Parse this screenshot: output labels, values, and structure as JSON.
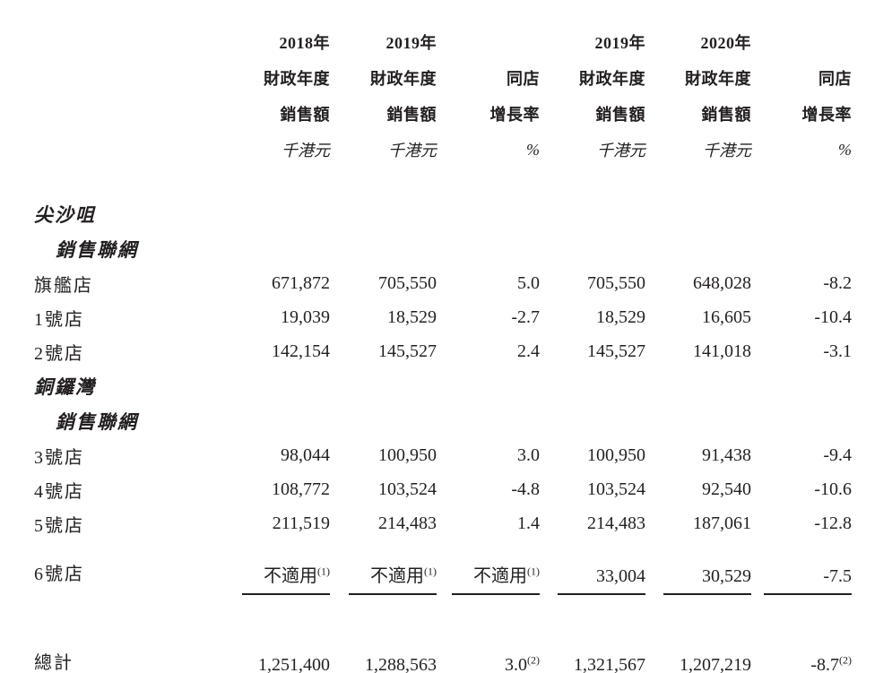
{
  "page": {
    "background": "#ffffff",
    "text_color": "#231f20",
    "rule_color": "#231f20"
  },
  "table": {
    "columns": [
      {
        "id": "fy2018-sales",
        "lines": [
          "2018年",
          "財政年度",
          "銷售額"
        ],
        "unit": "千港元"
      },
      {
        "id": "fy2019-sales-a",
        "lines": [
          "2019年",
          "財政年度",
          "銷售額"
        ],
        "unit": "千港元"
      },
      {
        "id": "same-store-growth-a",
        "lines": [
          "",
          "同店",
          "增長率"
        ],
        "unit": "%"
      },
      {
        "id": "fy2019-sales-b",
        "lines": [
          "2019年",
          "財政年度",
          "銷售額"
        ],
        "unit": "千港元"
      },
      {
        "id": "fy2020-sales",
        "lines": [
          "2020年",
          "財政年度",
          "銷售額"
        ],
        "unit": "千港元"
      },
      {
        "id": "same-store-growth-b",
        "lines": [
          "",
          "同店",
          "增長率"
        ],
        "unit": "%"
      }
    ],
    "rows": [
      {
        "id": "tsim-sha-tsui-section",
        "type": "section",
        "label": "尖沙咀"
      },
      {
        "id": "sales-network-tst",
        "type": "subsection",
        "label": "銷售聯網"
      },
      {
        "id": "flagship-store",
        "type": "data",
        "label": "旗艦店",
        "values": [
          "671,872",
          "705,550",
          "5.0",
          "705,550",
          "648,028",
          "-8.2"
        ]
      },
      {
        "id": "store-1",
        "type": "data",
        "label": "1號店",
        "values": [
          "19,039",
          "18,529",
          "-2.7",
          "18,529",
          "16,605",
          "-10.4"
        ]
      },
      {
        "id": "store-2",
        "type": "data",
        "label": "2號店",
        "values": [
          "142,154",
          "145,527",
          "2.4",
          "145,527",
          "141,018",
          "-3.1"
        ]
      },
      {
        "id": "causeway-bay-section",
        "type": "section",
        "label": "銅鑼灣"
      },
      {
        "id": "sales-network-cwb",
        "type": "subsection",
        "label": "銷售聯網"
      },
      {
        "id": "store-3",
        "type": "data",
        "label": "3號店",
        "values": [
          "98,044",
          "100,950",
          "3.0",
          "100,950",
          "91,438",
          "-9.4"
        ]
      },
      {
        "id": "store-4",
        "type": "data",
        "label": "4號店",
        "values": [
          "108,772",
          "103,524",
          "-4.8",
          "103,524",
          "92,540",
          "-10.6"
        ]
      },
      {
        "id": "store-5",
        "type": "data",
        "label": "5號店",
        "values": [
          "211,519",
          "214,483",
          "1.4",
          "214,483",
          "187,061",
          "-12.8"
        ]
      },
      {
        "id": "store-6",
        "type": "data",
        "label": "6號店",
        "rule": true,
        "values": [
          {
            "t": "不適用",
            "s": "(1)"
          },
          {
            "t": "不適用",
            "s": "(1)"
          },
          {
            "t": "不適用",
            "s": "(1)"
          },
          "33,004",
          "30,529",
          "-7.5"
        ]
      },
      {
        "id": "total",
        "type": "total",
        "label": "總計",
        "values": [
          "1,251,400",
          "1,288,563",
          {
            "t": "3.0",
            "s": "(2)"
          },
          "1,321,567",
          "1,207,219",
          {
            "t": "-8.7",
            "s": "(2)"
          }
        ]
      }
    ]
  }
}
